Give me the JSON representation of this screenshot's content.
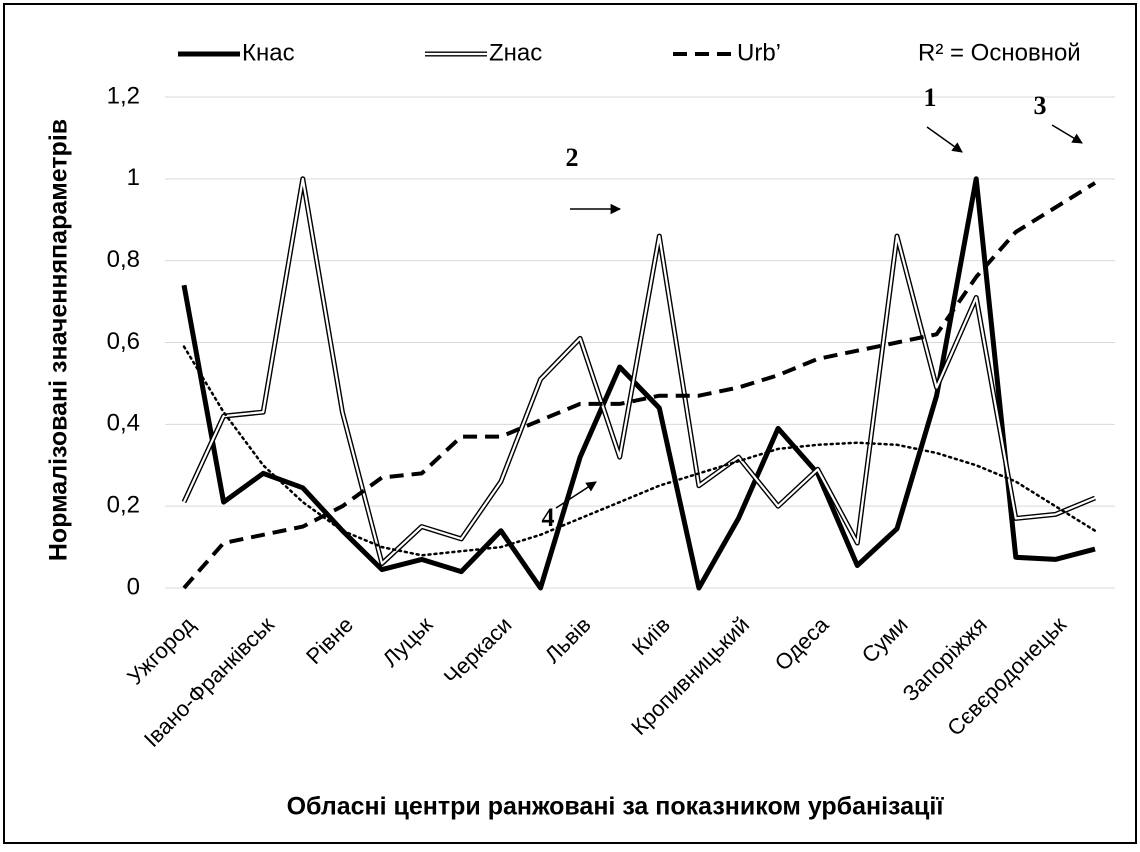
{
  "chart_data": {
    "type": "line",
    "categories": [
      "Ужгород",
      null,
      "Івано-Франківськ",
      null,
      "Рівне",
      null,
      "Луцьк",
      null,
      "Черкаси",
      null,
      "Львів",
      null,
      "Київ",
      null,
      "Кропивницький",
      null,
      "Одеса",
      null,
      "Суми",
      null,
      "Запоріжжя",
      null,
      "Сєвєродонецьк",
      null
    ],
    "series": [
      {
        "name": "Кнас",
        "color": "#000000",
        "style": "solid",
        "values": [
          0.74,
          0.21,
          0.28,
          0.245,
          0.14,
          0.045,
          0.07,
          0.04,
          0.14,
          0.0,
          0.32,
          0.54,
          0.44,
          0.0,
          0.17,
          0.39,
          0.28,
          0.055,
          0.145,
          0.47,
          1.0,
          0.075,
          0.07,
          0.095
        ]
      },
      {
        "name": "Zнас",
        "color": "#000000",
        "style": "double",
        "values": [
          0.21,
          0.42,
          0.43,
          1.0,
          0.43,
          0.06,
          0.15,
          0.12,
          0.26,
          0.51,
          0.61,
          0.32,
          0.86,
          0.25,
          0.32,
          0.2,
          0.29,
          0.11,
          0.86,
          0.49,
          0.71,
          0.17,
          0.18,
          0.22
        ]
      },
      {
        "name": "Urb’",
        "color": "#000000",
        "style": "dashed",
        "values": [
          0.0,
          0.11,
          0.13,
          0.15,
          0.2,
          0.27,
          0.28,
          0.37,
          0.37,
          0.41,
          0.45,
          0.45,
          0.47,
          0.47,
          0.49,
          0.52,
          0.56,
          0.58,
          0.6,
          0.62,
          0.76,
          0.87,
          0.93,
          0.99
        ]
      },
      {
        "name": "R² = Основной",
        "color": "#000000",
        "style": "dotted",
        "values": [
          0.59,
          0.43,
          0.3,
          0.21,
          0.14,
          0.1,
          0.08,
          0.09,
          0.1,
          0.13,
          0.17,
          0.21,
          0.25,
          0.28,
          0.31,
          0.34,
          0.35,
          0.355,
          0.35,
          0.33,
          0.3,
          0.26,
          0.2,
          0.14
        ]
      }
    ],
    "ylim": [
      0,
      1.2
    ],
    "yticks": [
      0,
      {
        "value": 0.2,
        "label": "0,2"
      },
      {
        "value": 0.4,
        "label": "0,4"
      },
      {
        "value": 0.6,
        "label": "0,6"
      },
      {
        "value": 0.8,
        "label": "0,8"
      },
      1,
      {
        "value": 1.2,
        "label": "1,2"
      }
    ],
    "grid": true,
    "legend": "top",
    "y_label": "Нормалізовані значенняпараметрів",
    "x_label": "Обласні центри ранжовані за показником урбанізації",
    "annotations": [
      "1",
      "2",
      "3",
      "4"
    ]
  }
}
